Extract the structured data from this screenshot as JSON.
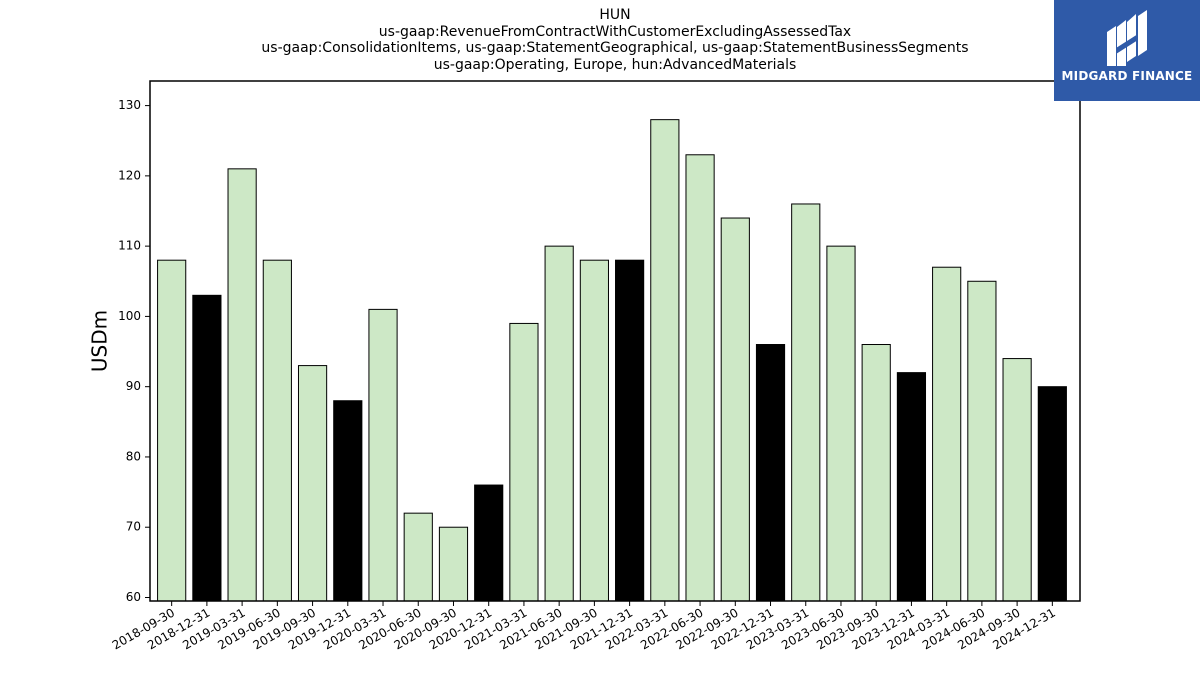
{
  "logo": {
    "text": "MIDGARD FINANCE",
    "background": "#2f5aa8",
    "icon": "midgard-logo-icon"
  },
  "chart_data": {
    "type": "bar",
    "title_lines": [
      "HUN",
      "us-gaap:RevenueFromContractWithCustomerExcludingAssessedTax",
      "us-gaap:ConsolidationItems, us-gaap:StatementGeographical, us-gaap:StatementBusinessSegments",
      "us-gaap:Operating, Europe, hun:AdvancedMaterials"
    ],
    "xlabel": "",
    "ylabel": "USDm",
    "ylim": [
      59.5,
      133.5
    ],
    "yticks": [
      60,
      70,
      80,
      90,
      100,
      110,
      120,
      130
    ],
    "grid": false,
    "colors": {
      "quarter": "#cde8c6",
      "year_end": "#000000",
      "edge": "#000000"
    },
    "categories": [
      "2018-09-30",
      "2018-12-31",
      "2019-03-31",
      "2019-06-30",
      "2019-09-30",
      "2019-12-31",
      "2020-03-31",
      "2020-06-30",
      "2020-09-30",
      "2020-12-31",
      "2021-03-31",
      "2021-06-30",
      "2021-09-30",
      "2021-12-31",
      "2022-03-31",
      "2022-06-30",
      "2022-09-30",
      "2022-12-31",
      "2023-03-31",
      "2023-06-30",
      "2023-09-30",
      "2023-12-31",
      "2024-03-31",
      "2024-06-30",
      "2024-09-30",
      "2024-12-31"
    ],
    "values": [
      108,
      103,
      121,
      108,
      93,
      88,
      101,
      72,
      70,
      76,
      99,
      110,
      108,
      108,
      128,
      123,
      114,
      96,
      116,
      110,
      96,
      92,
      107,
      105,
      94,
      90
    ]
  }
}
